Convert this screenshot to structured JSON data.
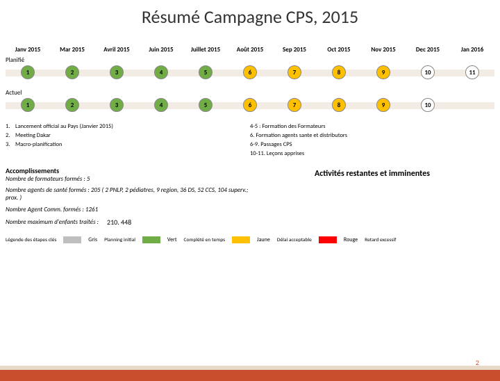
{
  "title": "Résumé Campagne CPS, 2015",
  "months": [
    "Janv 2015",
    "Mar 2015",
    "Avril 2015",
    "Juin 2015",
    "Juillet 2015",
    "Août 2015",
    "Sep 2015",
    "Oct 2015",
    "Nov 2015",
    "Dec 2015",
    "Jan 2016"
  ],
  "planifie_label": "Planifié",
  "actuel_label": "Actuel",
  "timeline_bar_color": "#f2ece4",
  "colors": {
    "gris": "#bfbfbf",
    "vert": "#70ad47",
    "jaune": "#ffc000",
    "rouge": "#ff0000",
    "white": "#ffffff"
  },
  "planifie_nodes": [
    {
      "label": "1",
      "bg": "#70ad47"
    },
    {
      "label": "2",
      "bg": "#70ad47"
    },
    {
      "label": "3",
      "bg": "#70ad47"
    },
    {
      "label": "4",
      "bg": "#70ad47"
    },
    {
      "label": "5",
      "bg": "#70ad47"
    },
    {
      "label": "6",
      "bg": "#ffc000"
    },
    {
      "label": "7",
      "bg": "#ffc000"
    },
    {
      "label": "8",
      "bg": "#ffc000"
    },
    {
      "label": "9",
      "bg": "#ffc000"
    },
    {
      "label": "10",
      "bg": "#ffffff"
    },
    {
      "label": "11",
      "bg": "#ffffff"
    }
  ],
  "actuel_nodes": [
    {
      "label": "1",
      "bg": "#70ad47"
    },
    {
      "label": "2",
      "bg": "#70ad47"
    },
    {
      "label": "3",
      "bg": "#70ad47"
    },
    {
      "label": "4",
      "bg": "#70ad47"
    },
    {
      "label": "5",
      "bg": "#70ad47"
    },
    {
      "label": "6",
      "bg": "#ffc000"
    },
    {
      "label": "7",
      "bg": "#ffc000"
    },
    {
      "label": "8",
      "bg": "#ffc000"
    },
    {
      "label": "9",
      "bg": "#ffc000"
    },
    {
      "label": "10",
      "bg": "#ffffff"
    }
  ],
  "notes_left": [
    {
      "n": "1.",
      "t": "Lancement official au Pays (Janvier 2015)"
    },
    {
      "n": "2.",
      "t": "Meeting Dakar"
    },
    {
      "n": "3.",
      "t": "Macro-planification"
    }
  ],
  "notes_right": [
    "4-5 : Formation des Formateurs",
    "6. Formation agents sante et distributors",
    "6-9. Passages CPS",
    "10-11. Leçons apprises"
  ],
  "accomp": {
    "heading": "Accomplissements",
    "line1": "Nombre de formateurs formés : 5",
    "line2": "Nombre agents de santé formés : 205 ( 2 PNLP, 2 pédiatres, 9 region, 36 DS, 52 CCS, 104 superv.; prox. )",
    "line3": "Nombre Agent Comm. formés : 1261",
    "line4_label": "Nombre maximum d'enfants traités :",
    "line4_value": "210. 448"
  },
  "activites_heading": "Activités restantes et imminentes",
  "legend": {
    "title": "Légende des étapes clés",
    "items": [
      {
        "color": "#bfbfbf",
        "label": "Gris",
        "desc": "Planning initial"
      },
      {
        "color": "#70ad47",
        "label": "Vert",
        "desc": "Complété en temps"
      },
      {
        "color": "#ffc000",
        "label": "Jaune",
        "desc": "Délai acceptable"
      },
      {
        "color": "#ff0000",
        "label": "Rouge",
        "desc": "Retard excessif"
      }
    ]
  },
  "page_number": "2"
}
